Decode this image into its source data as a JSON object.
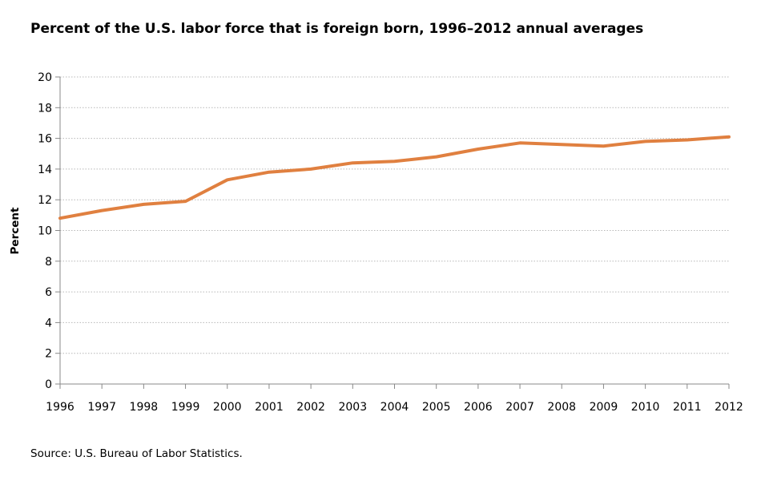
{
  "chart_data": {
    "type": "line",
    "title": "Percent of the U.S. labor force that is foreign born, 1996–2012 annual averages",
    "xlabel": "",
    "ylabel": "Percent",
    "categories": [
      "1996",
      "1997",
      "1998",
      "1999",
      "2000",
      "2001",
      "2002",
      "2003",
      "2004",
      "2005",
      "2006",
      "2007",
      "2008",
      "2009",
      "2010",
      "2011",
      "2012"
    ],
    "series": [
      {
        "values": [
          10.8,
          11.3,
          11.7,
          11.9,
          13.3,
          13.8,
          14.0,
          14.4,
          14.5,
          14.8,
          15.3,
          15.7,
          15.6,
          15.5,
          15.8,
          15.9,
          16.1
        ],
        "color": "#E08040"
      }
    ],
    "ylim": [
      0,
      20
    ],
    "yticks": [
      0,
      2,
      4,
      6,
      8,
      10,
      12,
      14,
      16,
      18,
      20
    ],
    "grid": true,
    "legend": "none"
  },
  "footer": {
    "source": "Source: U.S. Bureau of Labor Statistics."
  }
}
